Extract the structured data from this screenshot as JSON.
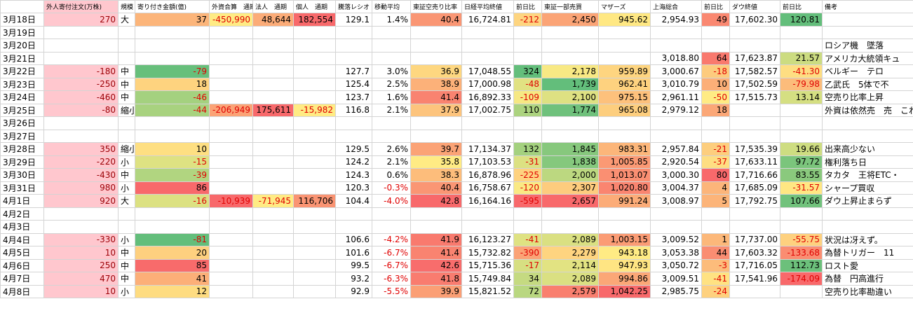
{
  "table": {
    "header": [
      "",
      "外人寄付注文(万株)",
      "規模",
      "寄り付き金額(億)",
      "外資合算　通期",
      "法人　通期",
      "個人　通期",
      "騰落レシオ",
      "移動平均",
      "東証空売り比率",
      "日経平均終値",
      "前日比",
      "東証一部売買",
      "マザーズ",
      "上海総合",
      "前日比",
      "ダウ終値",
      "前日比",
      "備考"
    ],
    "rows": [
      [
        "3月18日",
        "270",
        "大",
        "37",
        "-450,990",
        "48,644",
        "182,554",
        "129.1",
        "1.4%",
        "40.4",
        "16,724.81",
        "-212",
        "2,450",
        "945.62",
        "2,954.93",
        "49",
        "17,602.30",
        "120.81",
        null
      ],
      [
        "3月19日",
        null,
        null,
        null,
        null,
        null,
        null,
        null,
        null,
        null,
        null,
        null,
        null,
        null,
        null,
        null,
        null,
        null,
        null
      ],
      [
        "3月20日",
        null,
        null,
        null,
        null,
        null,
        null,
        null,
        null,
        null,
        null,
        null,
        null,
        null,
        null,
        null,
        null,
        null,
        "ロシア機　墜落"
      ],
      [
        "3月21日",
        null,
        null,
        null,
        null,
        null,
        null,
        null,
        null,
        null,
        null,
        null,
        null,
        null,
        "3,018.80",
        "64",
        "17,623.87",
        "21.57",
        "アメリカ大統領キュ"
      ],
      [
        "3月22日",
        "-180",
        "中",
        "-79",
        null,
        null,
        null,
        "127.7",
        "3.0%",
        "36.9",
        "17,048.55",
        "324",
        "2,178",
        "959.89",
        "3,000.67",
        "-18",
        "17,582.57",
        "-41.30",
        "ベルギー　テロ"
      ],
      [
        "3月23日",
        "-250",
        "中",
        "18",
        null,
        null,
        null,
        "125.4",
        "2.5%",
        "38.9",
        "17,000.98",
        "-48",
        "1,739",
        "962.41",
        "3,010.79",
        "10",
        "17,502.59",
        "-79.98",
        "乙武氏　5体で不"
      ],
      [
        "3月24日",
        "-460",
        "中",
        "-46",
        null,
        null,
        null,
        "123.7",
        "1.6%",
        "41.4",
        "16,892.33",
        "-109",
        "2,100",
        "975.15",
        "2,961.11",
        "-50",
        "17,515.73",
        "13.14",
        "空売り比率上昇"
      ],
      [
        "3月25日",
        "-80",
        "縮小",
        "-44",
        "-206,949",
        "175,611",
        "-15,982",
        "116.8",
        "2.1%",
        "37.9",
        "17,002.75",
        "110",
        "1,774",
        "965.08",
        "2,979.12",
        "18",
        null,
        null,
        "外資は依然売　売　これ大丈"
      ],
      [
        "3月26日",
        null,
        null,
        null,
        null,
        null,
        null,
        null,
        null,
        null,
        null,
        null,
        null,
        null,
        null,
        null,
        null,
        null,
        null
      ],
      [
        "3月27日",
        null,
        null,
        null,
        null,
        null,
        null,
        null,
        null,
        null,
        null,
        null,
        null,
        null,
        null,
        null,
        null,
        null,
        null
      ],
      [
        "3月28日",
        "350",
        "縮小",
        "10",
        null,
        null,
        null,
        "129.5",
        "2.6%",
        "39.7",
        "17,134.37",
        "132",
        "1,845",
        "983.31",
        "2,957.84",
        "-21",
        "17,535.39",
        "19.66",
        "出来高少ない"
      ],
      [
        "3月29日",
        "-220",
        "小",
        "-15",
        null,
        null,
        null,
        "124.2",
        "2.1%",
        "35.8",
        "17,103.53",
        "-31",
        "1,838",
        "1,005.85",
        "2,920.54",
        "-37",
        "17,633.11",
        "97.72",
        "権利落ち日"
      ],
      [
        "3月30日",
        "-430",
        "中",
        "-39",
        null,
        null,
        null,
        "124.3",
        "0.6%",
        "38.3",
        "16,878.96",
        "-225",
        "2,000",
        "1,013.07",
        "3,000.30",
        "80",
        "17,716.66",
        "83.55",
        "タカタ　王将ETC・"
      ],
      [
        "3月31日",
        "980",
        "小",
        "86",
        null,
        null,
        null,
        "120.3",
        "-0.3%",
        "40.4",
        "16,758.67",
        "-120",
        "2,307",
        "1,020.80",
        "3,004.37",
        "4",
        "17,685.09",
        "-31.57",
        "シャープ買収"
      ],
      [
        "4月1日",
        "920",
        "大",
        "-16",
        "-10,939",
        "-71,945",
        "116,706",
        "104.4",
        "-4.0%",
        "42.8",
        "16,164.16",
        "-595",
        "2,657",
        "991.24",
        "3,008.97",
        "5",
        "17,792.75",
        "107.66",
        "ダウ上昇止まらず"
      ],
      [
        "4月2日",
        null,
        null,
        null,
        null,
        null,
        null,
        null,
        null,
        null,
        null,
        null,
        null,
        null,
        null,
        null,
        null,
        null,
        null
      ],
      [
        "4月3日",
        null,
        null,
        null,
        null,
        null,
        null,
        null,
        null,
        null,
        null,
        null,
        null,
        null,
        null,
        null,
        null,
        null,
        null
      ],
      [
        "4月4日",
        "-330",
        "小",
        "-81",
        null,
        null,
        null,
        "106.6",
        "-4.2%",
        "41.9",
        "16,123.27",
        "-41",
        "2,089",
        "1,003.15",
        "3,009.52",
        "1",
        "17,737.00",
        "-55.75",
        "状況は冴えず。"
      ],
      [
        "4月5日",
        "10",
        "中",
        "20",
        null,
        null,
        null,
        "101.6",
        "-6.7%",
        "41.4",
        "15,732.82",
        "-390",
        "2,279",
        "943.18",
        "3,053.38",
        "44",
        "17,603.32",
        "-133.68",
        "為替トリガー　11"
      ],
      [
        "4月6日",
        "250",
        "中",
        "85",
        null,
        null,
        null,
        "99.5",
        "-6.7%",
        "42.6",
        "15,715.36",
        "-17",
        "2,114",
        "947.93",
        "3,050.72",
        "-3",
        "17,716.05",
        "112.73",
        "ロスト愛"
      ],
      [
        "4月7日",
        "470",
        "中",
        "41",
        null,
        null,
        null,
        "93.2",
        "-6.3%",
        "41.8",
        "15,749.84",
        "34",
        "2,089",
        "994.86",
        "3,009.51",
        "-41",
        "17,541.96",
        "-174.09",
        "為替　円高進行"
      ],
      [
        "4月8日",
        "10",
        "小",
        "12",
        null,
        null,
        null,
        "92.9",
        "-5.5%",
        "39.9",
        "15,821.52",
        "72",
        "2,579",
        "1,042.25",
        "2,985.75",
        "-24",
        null,
        null,
        "空売り比率勘違い"
      ]
    ]
  }
}
